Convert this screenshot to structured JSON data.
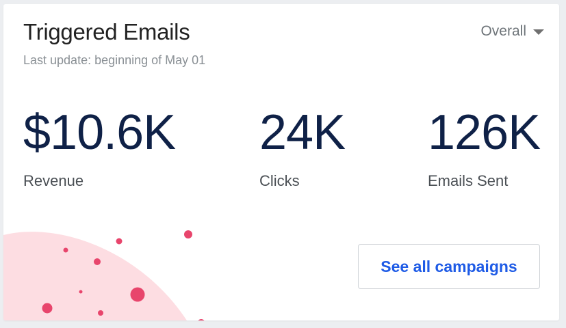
{
  "widget": {
    "title": "Triggered Emails",
    "last_update": "Last update: beginning of May 01",
    "period_selector": {
      "selected": "Overall"
    }
  },
  "metrics": [
    {
      "value": "$10.6K",
      "label": "Revenue"
    },
    {
      "value": "24K",
      "label": "Clicks"
    },
    {
      "value": "126K",
      "label": "Emails Sent"
    }
  ],
  "actions": {
    "see_all_label": "See all campaigns"
  },
  "colors": {
    "accent": "#1e5be6",
    "metric_value": "#0f2147",
    "decor_blob": "#fddde2",
    "decor_dots": "#e8456c"
  },
  "icons": {
    "dropdown": "chevron-down-icon"
  }
}
